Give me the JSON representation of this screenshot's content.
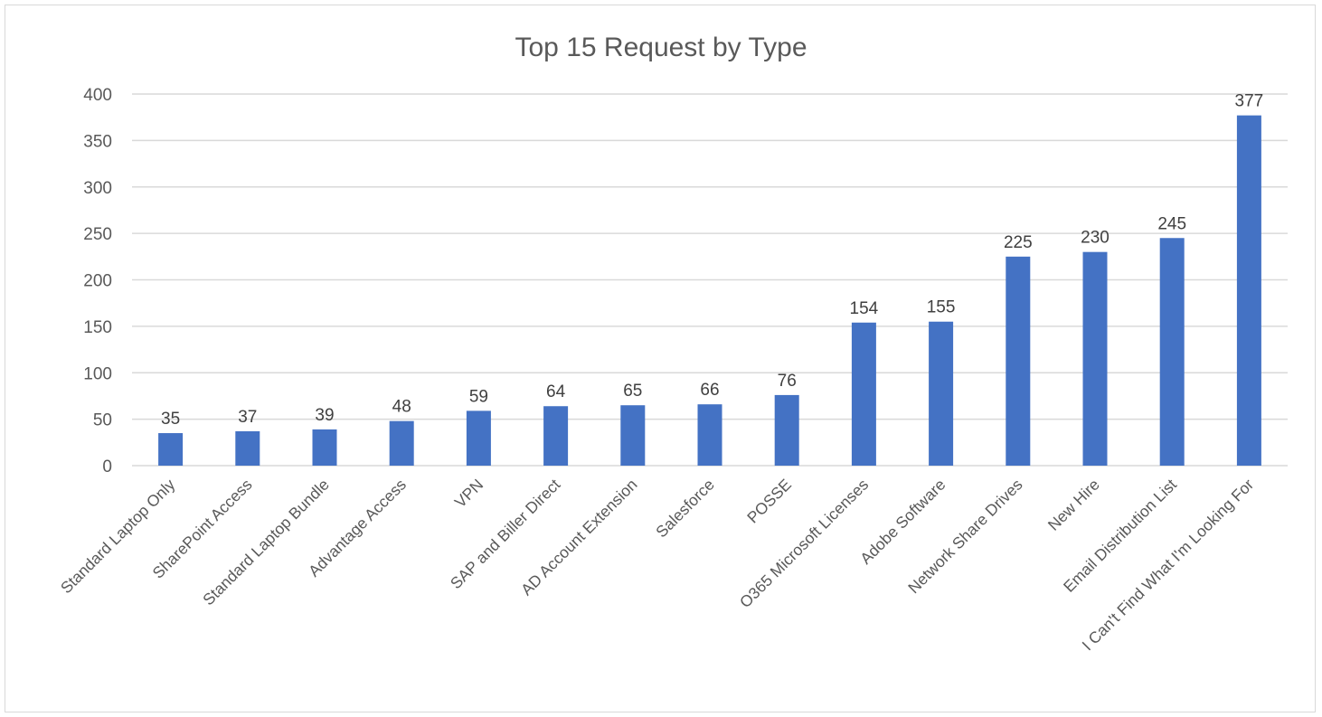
{
  "chart_data": {
    "type": "bar",
    "title": "Top 15 Request  by Type",
    "xlabel": "",
    "ylabel": "",
    "ylim": [
      0,
      400
    ],
    "yticks": [
      0,
      50,
      100,
      150,
      200,
      250,
      300,
      350,
      400
    ],
    "grid": true,
    "legend": "none",
    "categories": [
      "Standard Laptop Only",
      "SharePoint Access",
      "Standard Laptop Bundle",
      "Advantage Access",
      "VPN",
      "SAP and Biller Direct",
      "AD Account Extension",
      "Salesforce",
      "POSSE",
      "O365 Microsoft Licenses",
      "Adobe Software",
      "Network Share Drives",
      "New Hire",
      "Email Distribution List",
      "I Can't Find What I'm Looking For"
    ],
    "values": [
      35,
      37,
      39,
      48,
      59,
      64,
      65,
      66,
      76,
      154,
      155,
      225,
      230,
      245,
      377
    ],
    "colors": {
      "bar": "#4472c4",
      "grid": "#d9d9d9",
      "text": "#595959",
      "title": "#595959",
      "data_label": "#404040"
    }
  }
}
